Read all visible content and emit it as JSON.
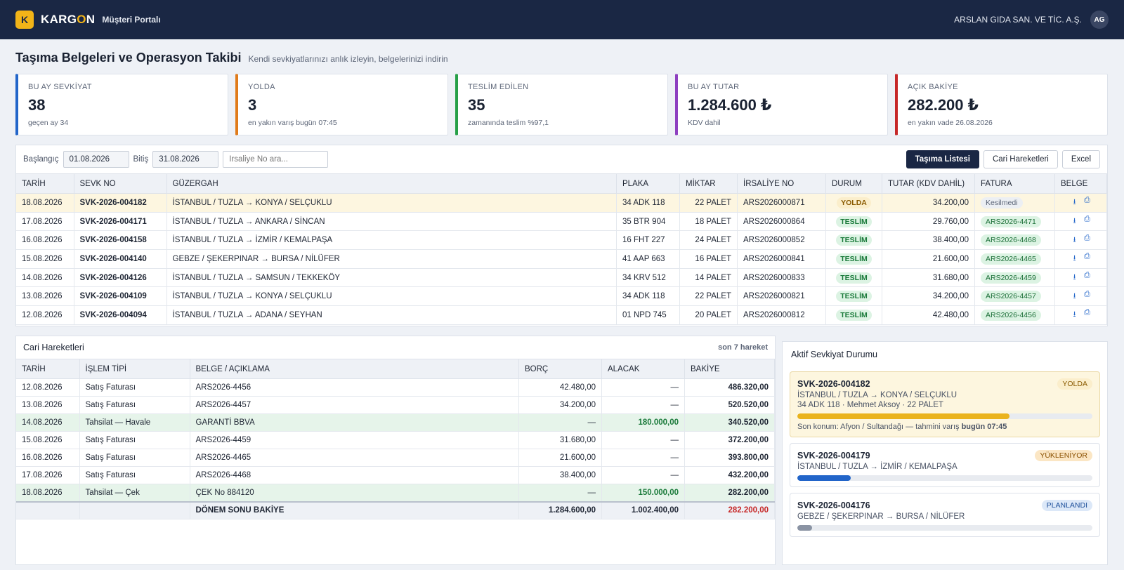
{
  "header": {
    "logo_letter": "K",
    "brand_a": "KARG",
    "brand_o": "O",
    "brand_b": "N",
    "portal": "Müşteri Portalı",
    "company": "ARSLAN GIDA SAN. VE TİC. A.Ş.",
    "avatar": "AG"
  },
  "page": {
    "title": "Taşıma Belgeleri ve Operasyon Takibi",
    "subtitle": "Kendi sevkiyatlarınızı anlık izleyin, belgelerinizi indirin"
  },
  "kpis": [
    {
      "label": "BU AY SEVKİYAT",
      "value": "38",
      "note": "geçen ay 34",
      "color": "#2265c9"
    },
    {
      "label": "YOLDA",
      "value": "3",
      "note": "en yakın varış bugün 07:45",
      "color": "#e07b1a"
    },
    {
      "label": "TESLİM EDİLEN",
      "value": "35",
      "note": "zamanında teslim %97,1",
      "color": "#27a047"
    },
    {
      "label": "BU AY TUTAR",
      "value": "1.284.600 ₺",
      "note": "KDV dahil",
      "color": "#8e3fc0"
    },
    {
      "label": "AÇIK BAKİYE",
      "value": "282.200 ₺",
      "note": "en yakın vade 26.08.2026",
      "color": "#c62828"
    }
  ],
  "filters": {
    "start_label": "Başlangıç",
    "start_value": "01.08.2026",
    "end_label": "Bitiş",
    "end_value": "31.08.2026",
    "search_placeholder": "İrsaliye No ara...",
    "btn_list": "Taşıma Listesi",
    "btn_ledger": "Cari Hareketleri",
    "btn_excel": "Excel"
  },
  "shipments": {
    "columns": [
      "TARİH",
      "SEVK NO",
      "GÜZERGAH",
      "PLAKA",
      "MİKTAR",
      "İRSALİYE NO",
      "DURUM",
      "TUTAR (KDV DAHİL)",
      "FATURA",
      "BELGE"
    ],
    "rows": [
      {
        "date": "18.08.2026",
        "no": "SVK-2026-004182",
        "route": "İSTANBUL / TUZLA → KONYA / SELÇUKLU",
        "plate": "34 ADK 118",
        "qty": "22 PALET",
        "waybill": "ARS2026000871",
        "status": "YOLDA",
        "amount": "34.200,00",
        "invoice": "Kesilmedi"
      },
      {
        "date": "17.08.2026",
        "no": "SVK-2026-004171",
        "route": "İSTANBUL / TUZLA → ANKARA / SİNCAN",
        "plate": "35 BTR 904",
        "qty": "18 PALET",
        "waybill": "ARS2026000864",
        "status": "TESLİM",
        "amount": "29.760,00",
        "invoice": "ARS2026-4471"
      },
      {
        "date": "16.08.2026",
        "no": "SVK-2026-004158",
        "route": "İSTANBUL / TUZLA → İZMİR / KEMALPAŞA",
        "plate": "16 FHT 227",
        "qty": "24 PALET",
        "waybill": "ARS2026000852",
        "status": "TESLİM",
        "amount": "38.400,00",
        "invoice": "ARS2026-4468"
      },
      {
        "date": "15.08.2026",
        "no": "SVK-2026-004140",
        "route": "GEBZE / ŞEKERPINAR → BURSA / NİLÜFER",
        "plate": "41 AAP 663",
        "qty": "16 PALET",
        "waybill": "ARS2026000841",
        "status": "TESLİM",
        "amount": "21.600,00",
        "invoice": "ARS2026-4465"
      },
      {
        "date": "14.08.2026",
        "no": "SVK-2026-004126",
        "route": "İSTANBUL / TUZLA → SAMSUN / TEKKEKÖY",
        "plate": "34 KRV 512",
        "qty": "14 PALET",
        "waybill": "ARS2026000833",
        "status": "TESLİM",
        "amount": "31.680,00",
        "invoice": "ARS2026-4459"
      },
      {
        "date": "13.08.2026",
        "no": "SVK-2026-004109",
        "route": "İSTANBUL / TUZLA → KONYA / SELÇUKLU",
        "plate": "34 ADK 118",
        "qty": "22 PALET",
        "waybill": "ARS2026000821",
        "status": "TESLİM",
        "amount": "34.200,00",
        "invoice": "ARS2026-4457"
      },
      {
        "date": "12.08.2026",
        "no": "SVK-2026-004094",
        "route": "İSTANBUL / TUZLA → ADANA / SEYHAN",
        "plate": "01 NPD 745",
        "qty": "20 PALET",
        "waybill": "ARS2026000812",
        "status": "TESLİM",
        "amount": "42.480,00",
        "invoice": "ARS2026-4456"
      }
    ]
  },
  "ledger": {
    "title": "Cari Hareketleri",
    "meta": "son 7 hareket",
    "columns": [
      "TARİH",
      "İŞLEM TİPİ",
      "BELGE / AÇIKLAMA",
      "BORÇ",
      "ALACAK",
      "BAKİYE"
    ],
    "rows": [
      {
        "date": "12.08.2026",
        "type": "Satış Faturası",
        "doc": "ARS2026-4456",
        "debit": "42.480,00",
        "credit": "—",
        "balance": "486.320,00",
        "pay": false
      },
      {
        "date": "13.08.2026",
        "type": "Satış Faturası",
        "doc": "ARS2026-4457",
        "debit": "34.200,00",
        "credit": "—",
        "balance": "520.520,00",
        "pay": false
      },
      {
        "date": "14.08.2026",
        "type": "Tahsilat — Havale",
        "doc": "GARANTİ BBVA",
        "debit": "—",
        "credit": "180.000,00",
        "balance": "340.520,00",
        "pay": true
      },
      {
        "date": "15.08.2026",
        "type": "Satış Faturası",
        "doc": "ARS2026-4459",
        "debit": "31.680,00",
        "credit": "—",
        "balance": "372.200,00",
        "pay": false
      },
      {
        "date": "16.08.2026",
        "type": "Satış Faturası",
        "doc": "ARS2026-4465",
        "debit": "21.600,00",
        "credit": "—",
        "balance": "393.800,00",
        "pay": false
      },
      {
        "date": "17.08.2026",
        "type": "Satış Faturası",
        "doc": "ARS2026-4468",
        "debit": "38.400,00",
        "credit": "—",
        "balance": "432.200,00",
        "pay": false
      },
      {
        "date": "18.08.2026",
        "type": "Tahsilat — Çek",
        "doc": "ÇEK No 884120",
        "debit": "—",
        "credit": "150.000,00",
        "balance": "282.200,00",
        "pay": true
      }
    ],
    "footer": {
      "label": "DÖNEM SONU BAKİYE",
      "debit": "1.284.600,00",
      "credit": "1.002.400,00",
      "balance": "282.200,00"
    }
  },
  "active": {
    "title": "Aktif Sevkiyat Durumu",
    "cards": [
      {
        "no": "SVK-2026-004182",
        "status": "YOLDA",
        "route": "İSTANBUL / TUZLA → KONYA / SELÇUKLU",
        "detail": "34 ADK 118 · Mehmet Aksoy · 22 PALET",
        "progress": 0.72,
        "bar_color": "#eab31d",
        "loc_prefix": "Son konum: Afyon / Sultandağı — tahmini varış ",
        "loc_bold": "bugün 07:45"
      },
      {
        "no": "SVK-2026-004179",
        "status": "YÜKLENİYOR",
        "route": "İSTANBUL / TUZLA → İZMİR / KEMALPAŞA",
        "progress": 0.18,
        "bar_color": "#2265c9"
      },
      {
        "no": "SVK-2026-004176",
        "status": "PLANLANDI",
        "route": "GEBZE / ŞEKERPINAR → BURSA / NİLÜFER",
        "progress": 0.05,
        "bar_color": "#8a93a3"
      }
    ]
  }
}
